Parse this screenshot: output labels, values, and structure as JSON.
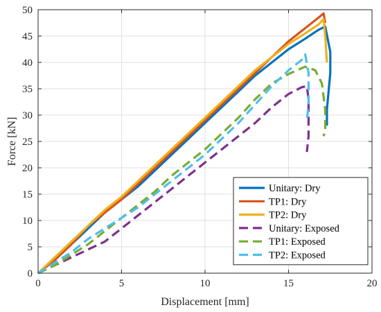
{
  "chart_data": {
    "type": "line",
    "title": "",
    "xlabel": "Displacement [mm]",
    "ylabel": "Force [kN]",
    "xlim": [
      0,
      20
    ],
    "ylim": [
      0,
      50
    ],
    "xticks": [
      0,
      5,
      10,
      15,
      20
    ],
    "yticks": [
      0,
      5,
      10,
      15,
      20,
      25,
      30,
      35,
      40,
      45,
      50
    ],
    "grid": true,
    "legend_position": "bottom-right",
    "series": [
      {
        "name": "Unitary: Dry",
        "color": "#0072BD",
        "dash": "solid",
        "x": [
          0,
          1,
          2,
          3,
          4,
          5,
          6,
          7,
          8,
          9,
          10,
          11,
          12,
          13,
          14,
          15,
          16,
          16.8,
          17.2,
          17.5,
          17.5,
          17.3,
          17.3
        ],
        "y": [
          0,
          2.5,
          5.5,
          8.5,
          11.5,
          14,
          16.5,
          19.5,
          22.5,
          25.5,
          28.5,
          31.5,
          34.5,
          37.5,
          40,
          42.5,
          44.5,
          46.2,
          46.8,
          42,
          38,
          31,
          28
        ]
      },
      {
        "name": "TP1: Dry",
        "color": "#D95319",
        "dash": "solid",
        "x": [
          0,
          1,
          2,
          3,
          4,
          5,
          6,
          7,
          8,
          9,
          10,
          11,
          12,
          13,
          14,
          15,
          16,
          16.8,
          17.1,
          17.2
        ],
        "y": [
          0,
          2.5,
          5.5,
          9,
          11.5,
          14,
          17,
          20,
          23,
          26,
          29,
          32,
          35,
          38,
          41,
          44,
          46.5,
          48.5,
          49.3,
          47.5
        ]
      },
      {
        "name": "TP2: Dry",
        "color": "#EDB120",
        "dash": "solid",
        "x": [
          0,
          1,
          2,
          3,
          4,
          5,
          6,
          7,
          8,
          9,
          10,
          11,
          12,
          13,
          14,
          15,
          16,
          16.8,
          17.1,
          17.2,
          17.3
        ],
        "y": [
          0,
          3,
          6,
          9,
          12,
          14.5,
          17.5,
          20.5,
          23.5,
          26.5,
          29.5,
          32.5,
          35.5,
          38.5,
          41,
          43.5,
          45.5,
          47.2,
          48.2,
          45,
          40
        ]
      },
      {
        "name": "Unitary: Exposed",
        "color": "#7E2F8E",
        "dash": "dashed",
        "x": [
          0,
          1,
          2,
          3,
          4,
          5,
          6,
          7,
          8,
          9,
          10,
          11,
          12,
          13,
          14,
          15,
          15.8,
          16.1,
          16.2,
          16.2,
          16.1
        ],
        "y": [
          0,
          1.5,
          3,
          4.5,
          6,
          8.5,
          11,
          13.5,
          16,
          18.5,
          21,
          23.5,
          26,
          28.5,
          31.5,
          34,
          35.3,
          35.5,
          33,
          26,
          23
        ]
      },
      {
        "name": "TP1: Exposed",
        "color": "#77AC30",
        "dash": "dashed",
        "x": [
          0,
          1,
          2,
          3,
          4,
          5,
          6,
          7,
          8,
          9,
          10,
          11,
          12,
          13,
          14,
          15,
          16,
          16.6,
          17,
          17.2,
          17.2,
          17.1
        ],
        "y": [
          0,
          1.5,
          3.5,
          5.5,
          8,
          10.5,
          13,
          15.5,
          18.5,
          21,
          23.5,
          26.5,
          29.5,
          33,
          36,
          37.8,
          39.2,
          38.5,
          36,
          31,
          27,
          26
        ]
      },
      {
        "name": "TP2: Exposed",
        "color": "#4DBEEE",
        "dash": "dashed",
        "x": [
          0,
          1,
          2,
          3,
          4,
          5,
          6,
          7,
          8,
          9,
          10,
          11,
          12,
          13,
          14,
          15,
          15.8,
          16,
          16.2,
          16.2,
          16.1
        ],
        "y": [
          0,
          2,
          4,
          6.5,
          8.5,
          10.5,
          12.5,
          15,
          17.5,
          20,
          22.5,
          25.5,
          28.5,
          32,
          35.5,
          38.5,
          40.5,
          41.5,
          38,
          32,
          29
        ]
      }
    ]
  }
}
